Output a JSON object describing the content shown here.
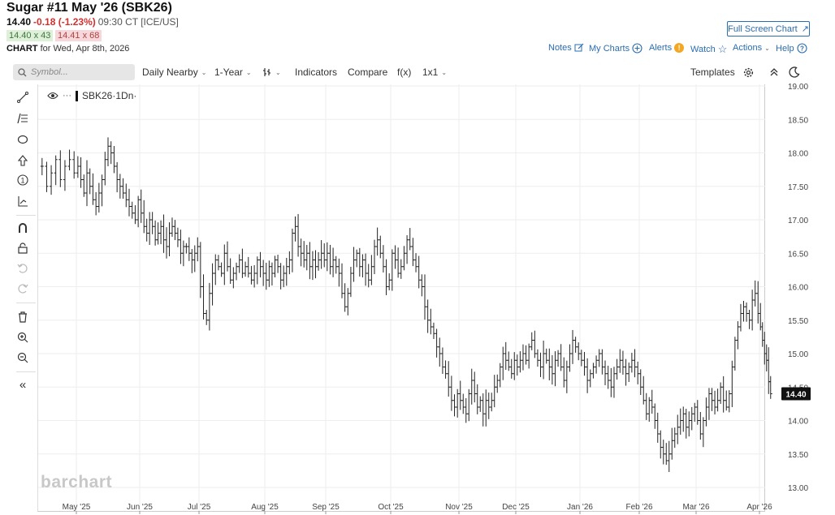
{
  "header": {
    "title": "Sugar #11 May '26 (SBK26)",
    "last": "14.40",
    "change": "-0.18 (-1.23%)",
    "time": "09:30 CT [ICE/US]",
    "bid": "14.40 x 43",
    "ask": "14.41 x 68",
    "chart_label": "CHART",
    "chart_for": "for Wed, Apr 8th, 2026",
    "fullscreen_label": "Full Screen Chart"
  },
  "nav": {
    "notes": "Notes",
    "my_charts": "My Charts",
    "alerts": "Alerts",
    "alerts_badge": "!",
    "watch": "Watch",
    "actions": "Actions",
    "help": "Help"
  },
  "toolbar": {
    "symbol_placeholder": "Symbol...",
    "period": "Daily Nearby",
    "range": "1-Year",
    "indicators": "Indicators",
    "compare": "Compare",
    "fx": "f(x)",
    "layout": "1x1",
    "templates": "Templates"
  },
  "legend": {
    "symbol": "SBK26",
    "interval": "·1Dn·"
  },
  "watermark": "barchart",
  "chart_data": {
    "type": "ohlc-bar",
    "title": "",
    "xlabel": "",
    "ylabel": "",
    "ylim": [
      13.0,
      19.0
    ],
    "yticks": [
      "19.00",
      "18.50",
      "18.00",
      "17.50",
      "17.00",
      "16.50",
      "16.00",
      "15.50",
      "15.00",
      "14.50",
      "14.00",
      "13.50",
      "13.00"
    ],
    "xticks": [
      "May '25",
      "Jun '25",
      "Jul '25",
      "Aug '25",
      "Sep '25",
      "Oct '25",
      "Nov '25",
      "Dec '25",
      "Jan '26",
      "Feb '26",
      "Mar '26",
      "Apr '26"
    ],
    "last_price_label": "14.40",
    "grid": true,
    "series": [
      {
        "closes_by_month": [
          {
            "month": "Apr '25",
            "closes": [
              17.8,
              17.5,
              17.7,
              17.9,
              17.6,
              17.8,
              17.9,
              17.7
            ]
          },
          {
            "month": "May '25",
            "closes": [
              17.8,
              17.6,
              17.4,
              17.7,
              17.5,
              17.3,
              17.2,
              17.4,
              17.6,
              17.9,
              18.1,
              18.0,
              17.8,
              17.6,
              17.5,
              17.4,
              17.3,
              17.2,
              17.1,
              17.0,
              17.3
            ]
          },
          {
            "month": "Jun '25",
            "closes": [
              17.1,
              16.9,
              16.8,
              17.0,
              16.9,
              16.7,
              16.8,
              16.9,
              16.7,
              16.6,
              16.8,
              16.9,
              16.8,
              16.7,
              16.5,
              16.6,
              16.6,
              16.5,
              16.4,
              16.5,
              16.6
            ]
          },
          {
            "month": "Jul '25",
            "closes": [
              16.0,
              15.6,
              15.5,
              15.9,
              16.2,
              16.4,
              16.3,
              16.2,
              16.5,
              16.3,
              16.1,
              16.2,
              16.3,
              16.4,
              16.2,
              16.3,
              16.2,
              16.1,
              16.2,
              16.4,
              16.3,
              16.2
            ]
          },
          {
            "month": "Aug '25",
            "closes": [
              16.1,
              16.3,
              16.2,
              16.4,
              16.3,
              16.1,
              16.2,
              16.3,
              16.4,
              16.8,
              16.9,
              16.6,
              16.5,
              16.4,
              16.5,
              16.3,
              16.4,
              16.3,
              16.4,
              16.5,
              16.4
            ]
          },
          {
            "month": "Sep '25",
            "closes": [
              16.5,
              16.3,
              16.4,
              16.3,
              16.2,
              15.9,
              15.7,
              15.9,
              16.2,
              16.4,
              16.5,
              16.3,
              16.4,
              16.2,
              16.1,
              16.3,
              16.6,
              16.7,
              16.5,
              16.3,
              16.0,
              16.1
            ]
          },
          {
            "month": "Oct '25",
            "closes": [
              16.5,
              16.4,
              16.2,
              16.3,
              16.5,
              16.7,
              16.6,
              16.4,
              16.3,
              16.1,
              16.0,
              15.7,
              15.5,
              15.4,
              15.3,
              15.1,
              15.0,
              14.8,
              14.7,
              14.5,
              14.3,
              14.2,
              14.4
            ]
          },
          {
            "month": "Nov '25",
            "closes": [
              14.3,
              14.2,
              14.1,
              14.4,
              14.6,
              14.4,
              14.2,
              14.3,
              14.1,
              14.3,
              14.2,
              14.3,
              14.5,
              14.6,
              14.8,
              15.0,
              14.9,
              14.8,
              14.7,
              14.9
            ]
          },
          {
            "month": "Dec '25",
            "closes": [
              14.8,
              14.9,
              15.0,
              14.9,
              15.1,
              15.2,
              15.0,
              14.9,
              14.8,
              15.0,
              14.9,
              14.8,
              14.7,
              14.9,
              15.0,
              14.8,
              14.6,
              14.8,
              15.0,
              15.2,
              15.1,
              15.0
            ]
          },
          {
            "month": "Jan '26",
            "closes": [
              14.9,
              14.8,
              14.6,
              14.7,
              14.8,
              14.9,
              15.0,
              14.8,
              14.7,
              14.6,
              14.5,
              14.7,
              14.8,
              14.9,
              14.8,
              14.7,
              14.8,
              14.9,
              14.8,
              14.7
            ]
          },
          {
            "month": "Feb '26",
            "closes": [
              14.5,
              14.3,
              14.1,
              14.3,
              14.2,
              14.0,
              13.8,
              13.6,
              13.5,
              13.4,
              13.5,
              13.7,
              13.8,
              13.9,
              14.0,
              14.1,
              13.9,
              14.0,
              14.1,
              14.2
            ]
          },
          {
            "month": "Mar '26",
            "closes": [
              14.0,
              13.8,
              14.0,
              14.2,
              14.4,
              14.3,
              14.2,
              14.3,
              14.5,
              14.3,
              14.2,
              14.4,
              14.8,
              15.2,
              15.4,
              15.6,
              15.7,
              15.6,
              15.5,
              15.8,
              15.9,
              15.6
            ]
          },
          {
            "month": "Apr '26",
            "closes": [
              15.4,
              15.2,
              15.0,
              14.9,
              14.58,
              14.4
            ]
          }
        ]
      }
    ]
  }
}
